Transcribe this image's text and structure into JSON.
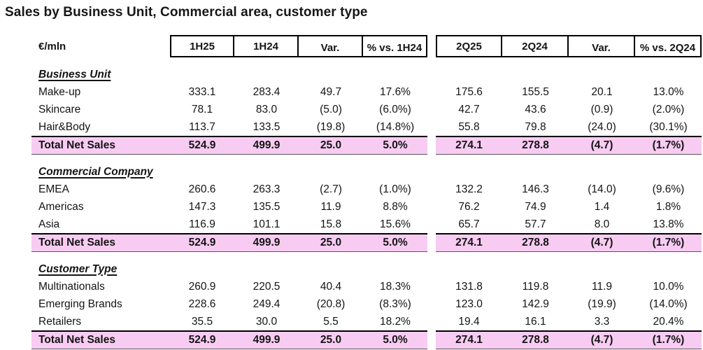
{
  "colors": {
    "total_row_highlight": "#F8CCF2",
    "border": "#000000"
  },
  "chart_data": {
    "type": "table",
    "title": "Sales by Business Unit, Commercial area, customer type",
    "unit_label": "€/mln",
    "columns": [
      "1H25",
      "1H24",
      "Var.",
      "% vs. 1H24",
      "2Q25",
      "2Q24",
      "Var.",
      "% vs. 2Q24"
    ],
    "sections": [
      {
        "heading": "Business Unit",
        "rows": [
          {
            "label": "Make-up",
            "values": [
              "333.1",
              "283.4",
              "49.7",
              "17.6%",
              "175.6",
              "155.5",
              "20.1",
              "13.0%"
            ]
          },
          {
            "label": "Skincare",
            "values": [
              "78.1",
              "83.0",
              "(5.0)",
              "(6.0%)",
              "42.7",
              "43.6",
              "(0.9)",
              "(2.0%)"
            ]
          },
          {
            "label": "Hair&Body",
            "values": [
              "113.7",
              "133.5",
              "(19.8)",
              "(14.8%)",
              "55.8",
              "79.8",
              "(24.0)",
              "(30.1%)"
            ]
          }
        ],
        "total": {
          "label": "Total Net Sales",
          "values": [
            "524.9",
            "499.9",
            "25.0",
            "5.0%",
            "274.1",
            "278.8",
            "(4.7)",
            "(1.7%)"
          ]
        }
      },
      {
        "heading": "Commercial Company",
        "rows": [
          {
            "label": "EMEA",
            "values": [
              "260.6",
              "263.3",
              "(2.7)",
              "(1.0%)",
              "132.2",
              "146.3",
              "(14.0)",
              "(9.6%)"
            ]
          },
          {
            "label": "Americas",
            "values": [
              "147.3",
              "135.5",
              "11.9",
              "8.8%",
              "76.2",
              "74.9",
              "1.4",
              "1.8%"
            ]
          },
          {
            "label": "Asia",
            "values": [
              "116.9",
              "101.1",
              "15.8",
              "15.6%",
              "65.7",
              "57.7",
              "8.0",
              "13.8%"
            ]
          }
        ],
        "total": {
          "label": "Total Net Sales",
          "values": [
            "524.9",
            "499.9",
            "25.0",
            "5.0%",
            "274.1",
            "278.8",
            "(4.7)",
            "(1.7%)"
          ]
        }
      },
      {
        "heading": "Customer Type",
        "rows": [
          {
            "label": "Multinationals",
            "values": [
              "260.9",
              "220.5",
              "40.4",
              "18.3%",
              "131.8",
              "119.8",
              "11.9",
              "10.0%"
            ]
          },
          {
            "label": "Emerging Brands",
            "values": [
              "228.6",
              "249.4",
              "(20.8)",
              "(8.3%)",
              "123.0",
              "142.9",
              "(19.9)",
              "(14.0%)"
            ]
          },
          {
            "label": "Retailers",
            "values": [
              "35.5",
              "30.0",
              "5.5",
              "18.2%",
              "19.4",
              "16.1",
              "3.3",
              "20.4%"
            ]
          }
        ],
        "total": {
          "label": "Total Net Sales",
          "values": [
            "524.9",
            "499.9",
            "25.0",
            "5.0%",
            "274.1",
            "278.8",
            "(4.7)",
            "(1.7%)"
          ]
        }
      }
    ]
  }
}
